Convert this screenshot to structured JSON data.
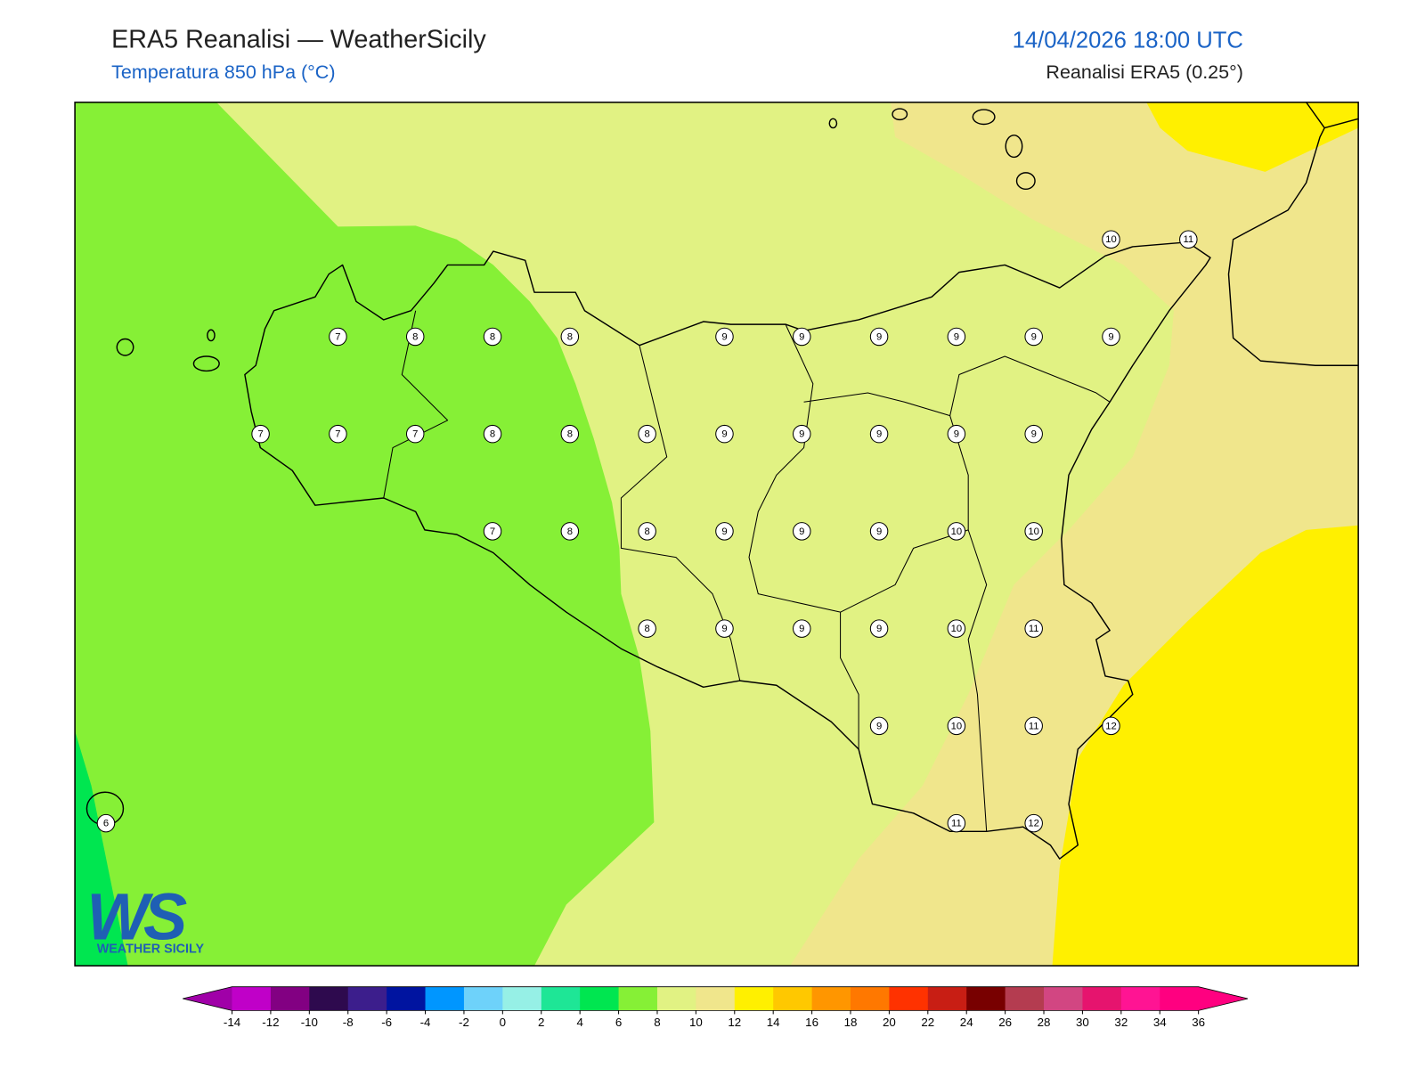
{
  "header": {
    "title": "ERA5 Reanalisi — WeatherSicily",
    "subtitle": "Temperatura 850 hPa (°C)",
    "datetime": "14/04/2026 18:00 UTC",
    "source": "Reanalisi ERA5 (0.25°)"
  },
  "colorbar": {
    "ticks": [
      -14,
      -12,
      -10,
      -8,
      -6,
      -4,
      -2,
      0,
      2,
      4,
      6,
      8,
      10,
      12,
      14,
      16,
      18,
      20,
      22,
      24,
      26,
      28,
      30,
      32,
      34,
      36
    ],
    "colors": [
      "#a000a8",
      "#c000c8",
      "#820082",
      "#2e0a4e",
      "#3c1e8c",
      "#0014a0",
      "#0096ff",
      "#6ed2fa",
      "#96f0e6",
      "#1ee696",
      "#00e650",
      "#86f036",
      "#e1f283",
      "#f0e68c",
      "#fff000",
      "#ffc800",
      "#ff9600",
      "#ff7800",
      "#ff3200",
      "#c81e14",
      "#780000",
      "#b43c50",
      "#d24682",
      "#e6146e",
      "#ff1493",
      "#ff0080",
      "#ff0080"
    ]
  },
  "stations": {
    "rows": [
      [
        null,
        null,
        null,
        null,
        null,
        null,
        null,
        null,
        null,
        null,
        null,
        null,
        null,
        10,
        11
      ],
      [
        null,
        null,
        null,
        7,
        8,
        8,
        8,
        null,
        9,
        9,
        9,
        9,
        9,
        9,
        null
      ],
      [
        null,
        null,
        7,
        7,
        7,
        8,
        8,
        8,
        9,
        9,
        9,
        9,
        9,
        null,
        null
      ],
      [
        null,
        null,
        null,
        null,
        null,
        7,
        8,
        8,
        9,
        9,
        9,
        10,
        10,
        null,
        null
      ],
      [
        null,
        null,
        null,
        null,
        null,
        null,
        null,
        8,
        9,
        9,
        9,
        10,
        11,
        null,
        null
      ],
      [
        null,
        null,
        null,
        null,
        null,
        null,
        null,
        null,
        null,
        null,
        9,
        10,
        11,
        12,
        null
      ],
      [
        6,
        null,
        null,
        null,
        null,
        null,
        null,
        null,
        null,
        null,
        null,
        11,
        12,
        null,
        null
      ]
    ]
  },
  "logo": {
    "text": "WS",
    "caption": "WEATHER SICILY"
  }
}
